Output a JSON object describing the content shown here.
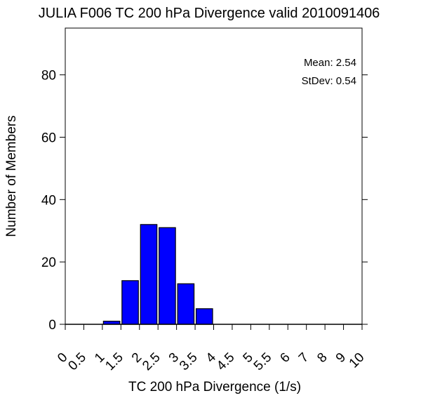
{
  "chart_data": {
    "type": "bar",
    "title": "JULIA F006 TC 200 hPa Divergence valid 2010091406",
    "xlabel": "TC 200 hPa Divergence (1/s)",
    "ylabel": "Number of Members",
    "x_tick_labels": [
      "0",
      "0.5",
      "1",
      "1.5",
      "2",
      "2.5",
      "3",
      "3.5",
      "4",
      "4.5",
      "5",
      "5.5",
      "6",
      "7",
      "8",
      "9",
      "10"
    ],
    "y_ticks": [
      0,
      20,
      40,
      60,
      80
    ],
    "ylim": [
      0,
      95
    ],
    "categories": [
      "0-0.5",
      "0.5-1",
      "1-1.5",
      "1.5-2",
      "2-2.5",
      "2.5-3",
      "3-3.5",
      "3.5-4",
      "4-4.5",
      "4.5-5",
      "5-5.5",
      "5.5-6",
      "6-7",
      "7-8",
      "8-9",
      "9-10"
    ],
    "values": [
      0,
      0,
      1,
      14,
      32,
      31,
      13,
      5,
      0,
      0,
      0,
      0,
      0,
      0,
      0,
      0
    ],
    "bar_color": "#0000ff",
    "annotations": [
      "Mean: 2.54",
      "StDev: 0.54"
    ],
    "grid": false
  }
}
